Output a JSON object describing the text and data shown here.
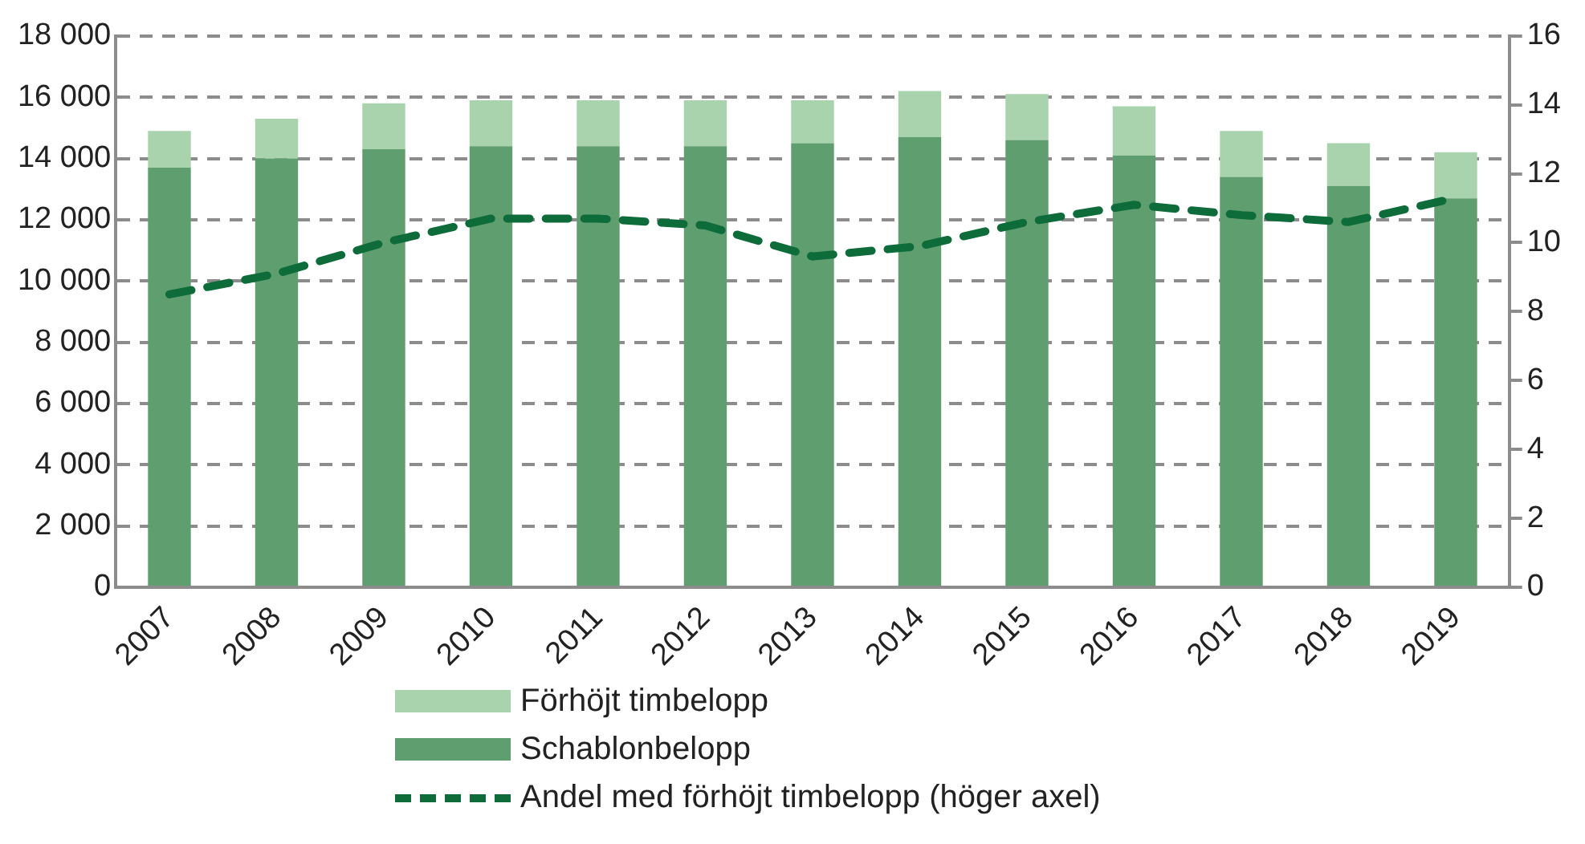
{
  "chart_data": {
    "type": "bar",
    "stacked": true,
    "categories": [
      "2007",
      "2008",
      "2009",
      "2010",
      "2011",
      "2012",
      "2013",
      "2014",
      "2015",
      "2016",
      "2017",
      "2018",
      "2019"
    ],
    "series": [
      {
        "name": "Schablonbelopp",
        "color": "#5f9e6e",
        "values": [
          13700,
          14000,
          14300,
          14400,
          14400,
          14400,
          14500,
          14700,
          14600,
          14100,
          13400,
          13100,
          12700
        ]
      },
      {
        "name": "Förhöjt timbelopp",
        "color": "#a8d3ad",
        "values": [
          1200,
          1300,
          1500,
          1500,
          1500,
          1500,
          1400,
          1500,
          1500,
          1600,
          1500,
          1400,
          1500
        ]
      },
      {
        "name": "Andel med förhöjt timbelopp (höger axel)",
        "type": "line",
        "axis": "y2",
        "line_style": "dashed",
        "marker": "none",
        "color": "#0e6b3a",
        "values": [
          8.5,
          9.1,
          10.0,
          10.7,
          10.7,
          10.5,
          9.6,
          9.9,
          10.6,
          11.1,
          10.8,
          10.6,
          11.3
        ]
      }
    ],
    "ylim": [
      0,
      18000
    ],
    "yticks": [
      {
        "value": 0,
        "label": "0"
      },
      {
        "value": 2000,
        "label": "2 000"
      },
      {
        "value": 4000,
        "label": "4 000"
      },
      {
        "value": 6000,
        "label": "6 000"
      },
      {
        "value": 8000,
        "label": "8 000"
      },
      {
        "value": 10000,
        "label": "10 000"
      },
      {
        "value": 12000,
        "label": "12 000"
      },
      {
        "value": 14000,
        "label": "14 000"
      },
      {
        "value": 16000,
        "label": "16 000"
      },
      {
        "value": 18000,
        "label": "18 000"
      }
    ],
    "y2lim": [
      0,
      16
    ],
    "y2ticks": [
      0,
      2,
      4,
      6,
      8,
      10,
      12,
      14,
      16
    ],
    "grid": "y",
    "legend": "bottom"
  }
}
